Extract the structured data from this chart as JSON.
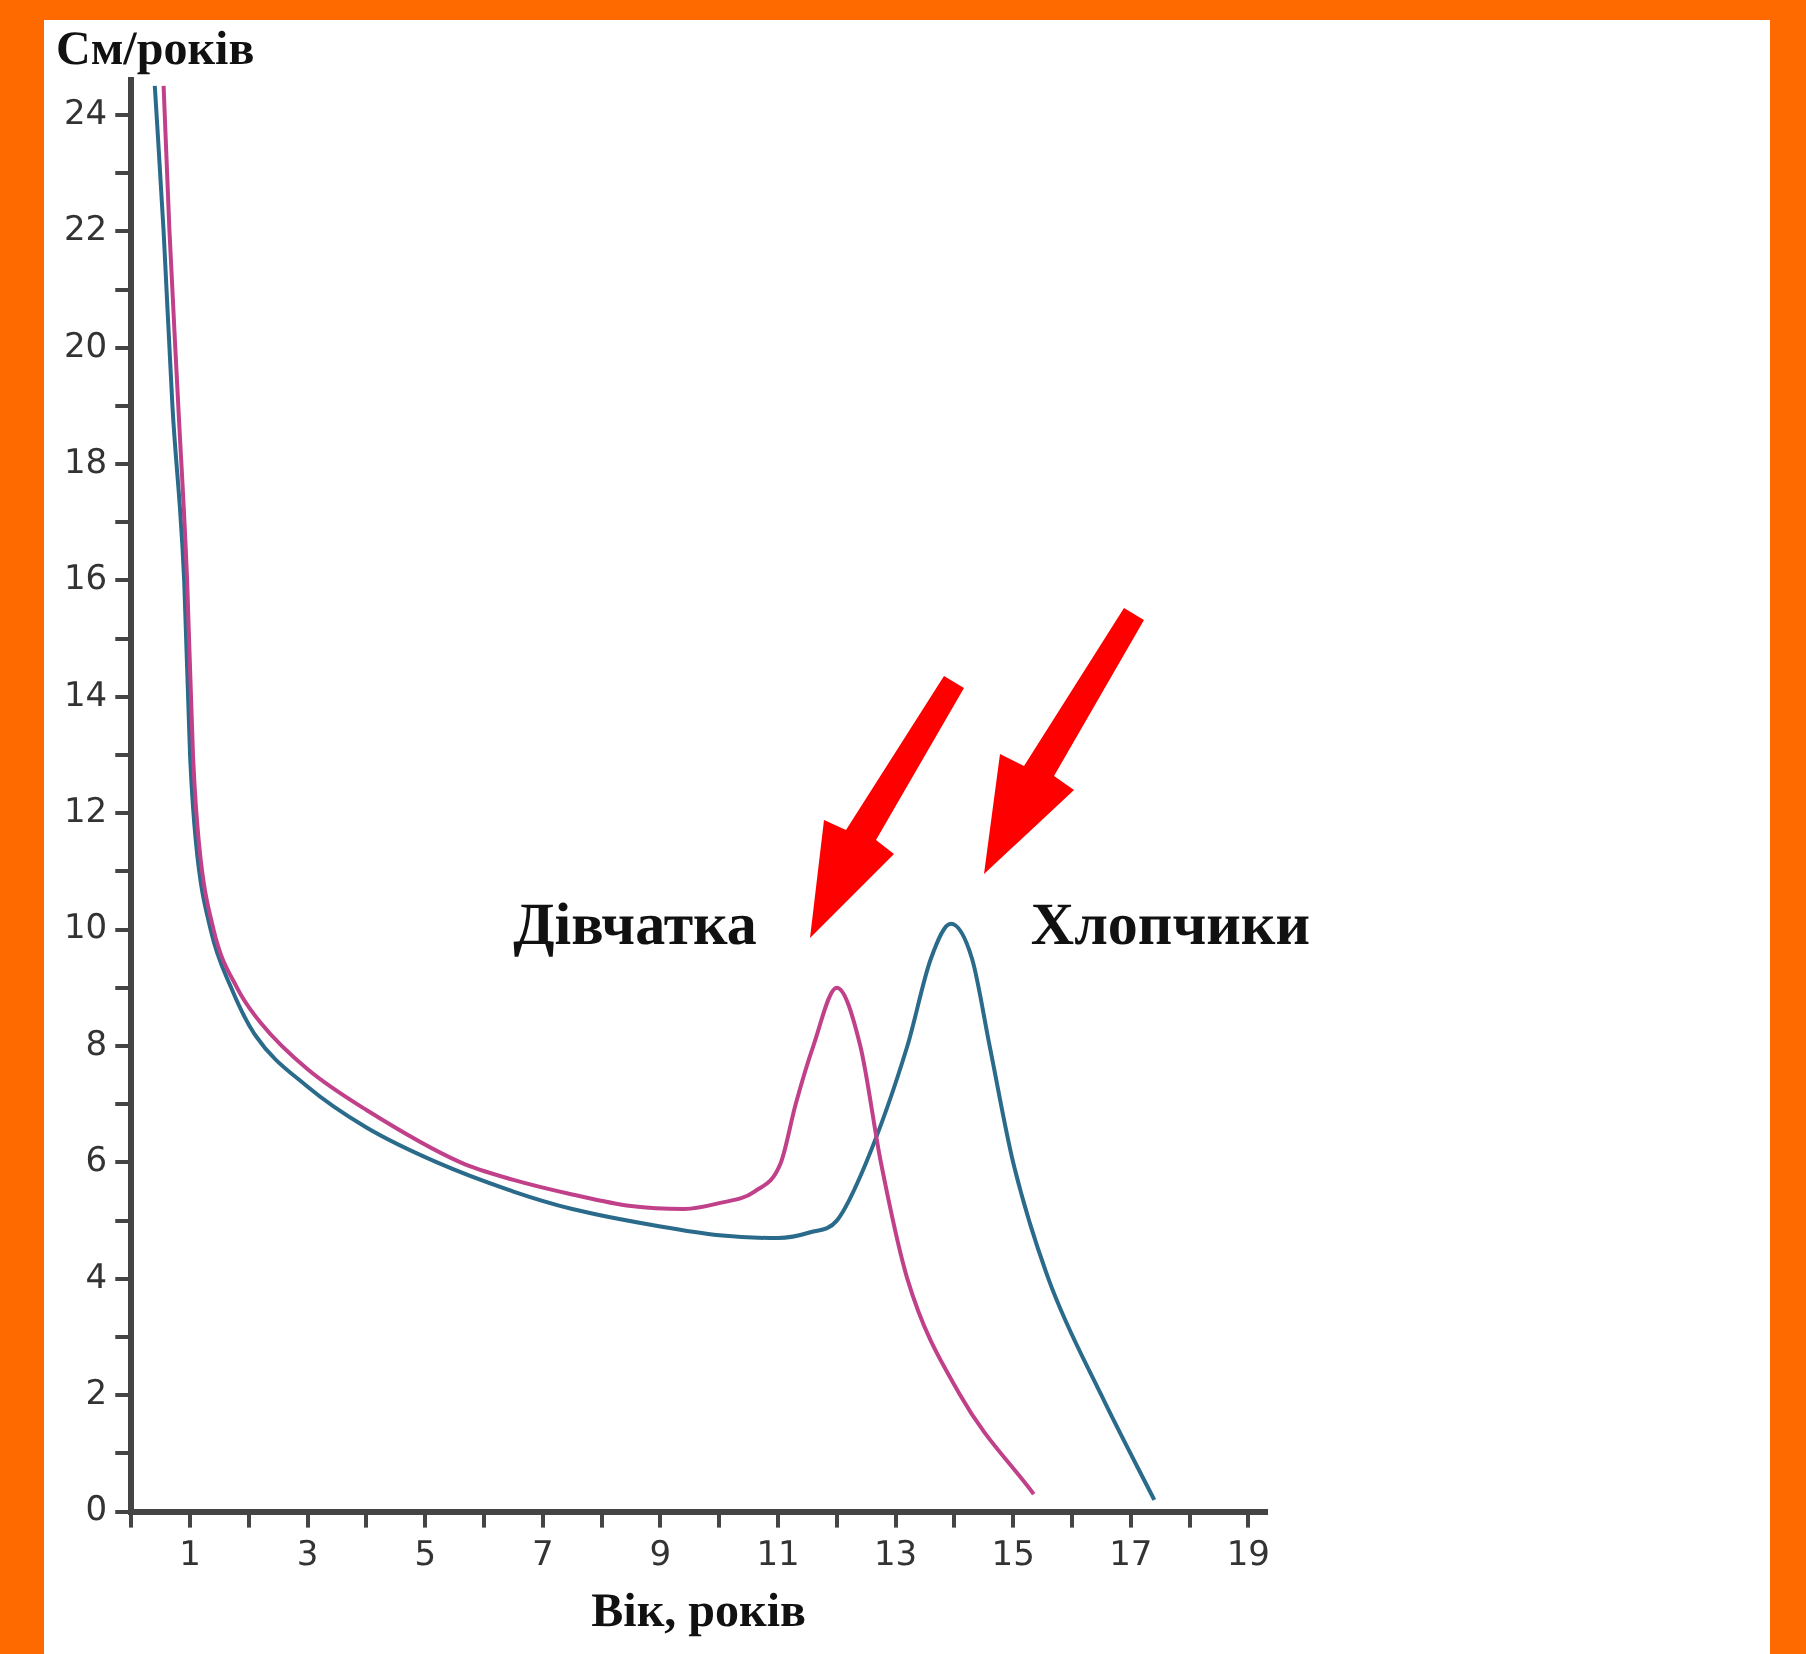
{
  "chart_data": {
    "type": "line",
    "xlabel": "Вік, років",
    "ylabel": "См/років",
    "xlim": [
      0,
      19.3
    ],
    "ylim": [
      0,
      24.6
    ],
    "xticks": [
      {
        "value": 0,
        "label": null
      },
      1,
      {
        "value": 2,
        "label": null
      },
      3,
      {
        "value": 4,
        "label": null
      },
      5,
      {
        "value": 6,
        "label": null
      },
      7,
      {
        "value": 8,
        "label": null
      },
      9,
      {
        "value": 10,
        "label": null
      },
      11,
      {
        "value": 12,
        "label": null
      },
      13,
      {
        "value": 14,
        "label": null
      },
      15,
      {
        "value": 16,
        "label": null
      },
      17,
      {
        "value": 18,
        "label": null
      },
      19
    ],
    "yticks": [
      0,
      {
        "value": 1,
        "label": null
      },
      2,
      {
        "value": 3,
        "label": null
      },
      4,
      {
        "value": 5,
        "label": null
      },
      6,
      {
        "value": 7,
        "label": null
      },
      8,
      {
        "value": 9,
        "label": null
      },
      10,
      {
        "value": 11,
        "label": null
      },
      12,
      {
        "value": 13,
        "label": null
      },
      14,
      {
        "value": 15,
        "label": null
      },
      16,
      {
        "value": 17,
        "label": null
      },
      18,
      {
        "value": 19,
        "label": null
      },
      20,
      {
        "value": 21,
        "label": null
      },
      22,
      {
        "value": 23,
        "label": null
      },
      24
    ],
    "grid": false,
    "legend": false,
    "marker": "none",
    "line_style": "solid",
    "series": [
      {
        "name": "Дівчатка",
        "color": "#c0408a",
        "x": [
          0.55,
          0.65,
          0.8,
          0.95,
          1.05,
          1.15,
          1.4,
          1.8,
          2.2,
          3,
          4,
          5.6,
          6.5,
          7.5,
          8.5,
          9.4,
          10,
          10.6,
          11.05,
          11.3,
          11.6,
          12,
          12.4,
          12.75,
          13.2,
          14.1,
          15.35
        ],
        "values": [
          24.5,
          22,
          19,
          16,
          13,
          11.5,
          10,
          9,
          8.4,
          7.6,
          6.9,
          6,
          5.7,
          5.45,
          5.25,
          5.2,
          5.3,
          5.5,
          6,
          7,
          8,
          9,
          8,
          6,
          4,
          2,
          0.3
        ]
      },
      {
        "name": "Хлопчики",
        "color": "#2a6a8a",
        "x": [
          0.4,
          0.55,
          0.7,
          0.9,
          1,
          1.1,
          1.35,
          1.7,
          2.1,
          3,
          4,
          5.2,
          6.5,
          7.5,
          9,
          10,
          11,
          11.55,
          12,
          12.5,
          13.2,
          13.6,
          13.94,
          14.3,
          14.6,
          15,
          15.6,
          16.5,
          17.4
        ],
        "values": [
          24.5,
          22,
          19,
          16,
          13,
          11.5,
          10,
          9,
          8.2,
          7.3,
          6.6,
          6,
          5.5,
          5.2,
          4.9,
          4.75,
          4.7,
          4.8,
          5,
          6,
          8,
          9.5,
          10.1,
          9.5,
          8,
          6,
          4,
          2,
          0.2
        ]
      }
    ]
  }
}
